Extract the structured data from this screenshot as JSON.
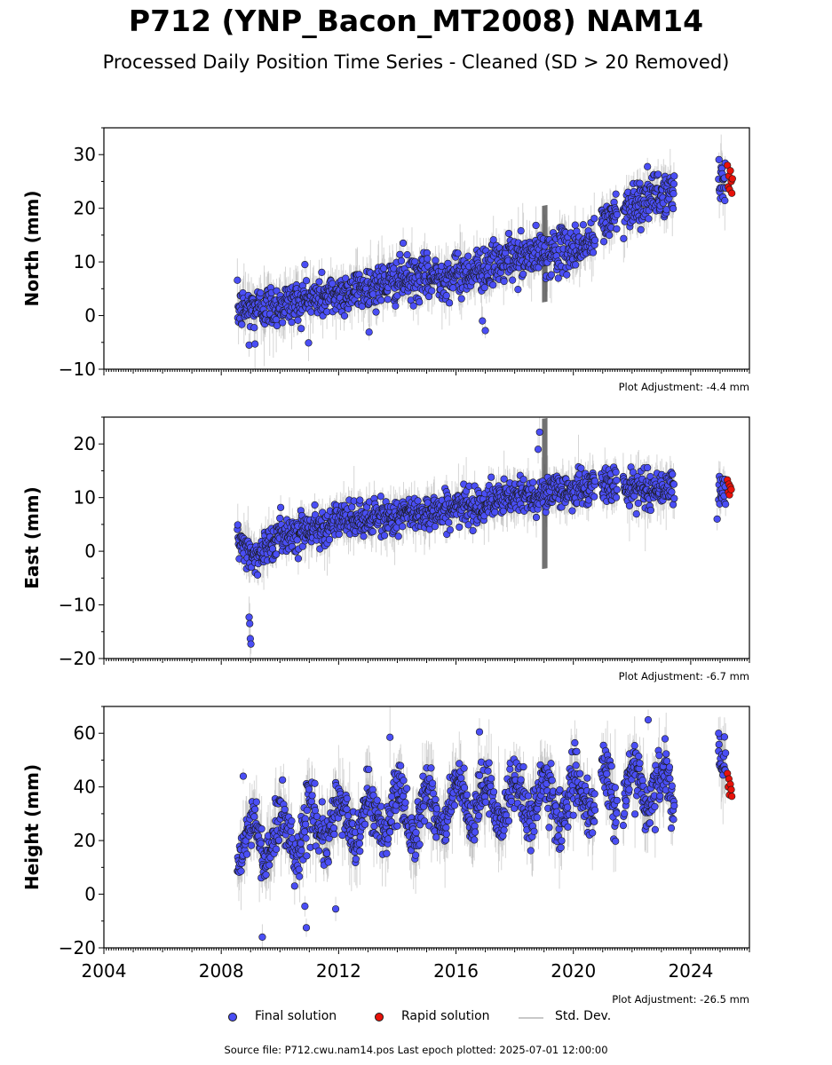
{
  "title": "P712 (YNP_Bacon_MT2008) NAM14",
  "subtitle": "Processed Daily Position Time Series - Cleaned (SD > 20 Removed)",
  "source_text": "Source file: P712.cwu.nam14.pos  Last epoch plotted: 2025-07-01 12:00:00",
  "colors": {
    "final": "#4a4ef5",
    "rapid": "#e8120a",
    "stddev": "#b4b4b4",
    "marker_edge": "#1a1a1a"
  },
  "legend": {
    "final_label": "Final solution",
    "rapid_label": "Rapid solution",
    "stddev_label": "Std. Dev."
  },
  "chart_data": [
    {
      "type": "scatter",
      "panel": "north",
      "ylabel": "North (mm)",
      "ylim": [
        -10,
        35
      ],
      "xlim": [
        2004,
        2026
      ],
      "yticks": [
        -10,
        0,
        10,
        20,
        30
      ],
      "adjustment": "Plot Adjustment: -4.4 mm",
      "trend": [
        [
          2008.5,
          1
        ],
        [
          2010,
          2
        ],
        [
          2012,
          4
        ],
        [
          2014,
          6.5
        ],
        [
          2016,
          7.5
        ],
        [
          2018,
          10.5
        ],
        [
          2020,
          12.5
        ],
        [
          2020.7,
          14
        ],
        [
          2021,
          17
        ],
        [
          2022,
          21
        ],
        [
          2023.4,
          23
        ],
        [
          2025.3,
          25.5
        ]
      ],
      "segments": [
        [
          2008.55,
          2020.75
        ],
        [
          2020.95,
          2021.5
        ],
        [
          2021.7,
          2023.45
        ],
        [
          2024.95,
          2025.2
        ]
      ],
      "scatter_sd": 2.0,
      "err_sd": 2.2,
      "outliers": [
        [
          2008.95,
          -5.5
        ],
        [
          2009.15,
          -5.3
        ],
        [
          2010.85,
          9.5
        ],
        [
          2014.2,
          13.5
        ],
        [
          2016.9,
          -1
        ],
        [
          2017.0,
          -2.8
        ],
        [
          2017.8,
          15.3
        ],
        [
          2022.3,
          16
        ]
      ],
      "rapid": [
        [
          2025.25,
          28
        ],
        [
          2025.28,
          24
        ],
        [
          2025.3,
          26
        ],
        [
          2025.32,
          23.5
        ],
        [
          2025.35,
          27
        ],
        [
          2025.38,
          25
        ],
        [
          2025.4,
          22.8
        ],
        [
          2025.42,
          25.5
        ]
      ]
    },
    {
      "type": "scatter",
      "panel": "east",
      "ylabel": "East (mm)",
      "ylim": [
        -20,
        25
      ],
      "xlim": [
        2004,
        2026
      ],
      "yticks": [
        -20,
        -10,
        0,
        10,
        20
      ],
      "adjustment": "Plot Adjustment: -6.7 mm",
      "trend": [
        [
          2008.5,
          2
        ],
        [
          2009.2,
          -1
        ],
        [
          2010,
          3
        ],
        [
          2012,
          5.5
        ],
        [
          2014,
          6.5
        ],
        [
          2016,
          8
        ],
        [
          2018,
          10
        ],
        [
          2020,
          11.5
        ],
        [
          2020.7,
          12
        ],
        [
          2021,
          12.5
        ],
        [
          2022.5,
          11.5
        ],
        [
          2023.4,
          12
        ],
        [
          2025.3,
          11
        ]
      ],
      "segments": [
        [
          2008.55,
          2020.75
        ],
        [
          2020.95,
          2021.5
        ],
        [
          2021.7,
          2023.45
        ],
        [
          2024.95,
          2025.2
        ]
      ],
      "scatter_sd": 1.6,
      "err_sd": 2.0,
      "outliers": [
        [
          2008.95,
          -12.3
        ],
        [
          2008.97,
          -13.5
        ],
        [
          2008.99,
          -16.3
        ],
        [
          2009.01,
          -17.3
        ],
        [
          2018.8,
          19
        ],
        [
          2018.85,
          22.2
        ],
        [
          2024.9,
          6
        ]
      ],
      "rapid": [
        [
          2025.25,
          13.3
        ],
        [
          2025.28,
          11
        ],
        [
          2025.3,
          12.5
        ],
        [
          2025.32,
          10.5
        ],
        [
          2025.35,
          12
        ],
        [
          2025.38,
          11.5
        ]
      ]
    },
    {
      "type": "scatter",
      "panel": "height",
      "ylabel": "Height (mm)",
      "ylim": [
        -20,
        70
      ],
      "xlim": [
        2004,
        2026
      ],
      "xticks": [
        2004,
        2008,
        2012,
        2016,
        2020,
        2024
      ],
      "yticks": [
        -20,
        0,
        20,
        40,
        60
      ],
      "adjustment": "Plot Adjustment: -26.5 mm",
      "trend": [
        [
          2008.5,
          18
        ],
        [
          2010,
          22
        ],
        [
          2012,
          27
        ],
        [
          2014,
          30
        ],
        [
          2016,
          33
        ],
        [
          2018,
          35
        ],
        [
          2020,
          35
        ],
        [
          2021,
          38
        ],
        [
          2022.5,
          40
        ],
        [
          2023.4,
          38
        ],
        [
          2025.3,
          42
        ]
      ],
      "segments": [
        [
          2008.55,
          2020.75
        ],
        [
          2020.95,
          2021.5
        ],
        [
          2021.7,
          2023.45
        ],
        [
          2024.95,
          2025.2
        ]
      ],
      "seasonal_amp": 8,
      "scatter_sd": 5,
      "err_sd": 6,
      "outliers": [
        [
          2009.4,
          -16
        ],
        [
          2010.9,
          -12.5
        ],
        [
          2010.85,
          -4.5
        ],
        [
          2011.9,
          -5.5
        ],
        [
          2008.75,
          44
        ],
        [
          2013.75,
          58.5
        ],
        [
          2016.8,
          60.5
        ],
        [
          2022.55,
          65
        ],
        [
          2024.95,
          60
        ]
      ],
      "rapid": [
        [
          2025.25,
          45
        ],
        [
          2025.28,
          40
        ],
        [
          2025.3,
          43
        ],
        [
          2025.32,
          37
        ],
        [
          2025.35,
          41
        ],
        [
          2025.38,
          39
        ],
        [
          2025.4,
          36.5
        ]
      ]
    }
  ]
}
